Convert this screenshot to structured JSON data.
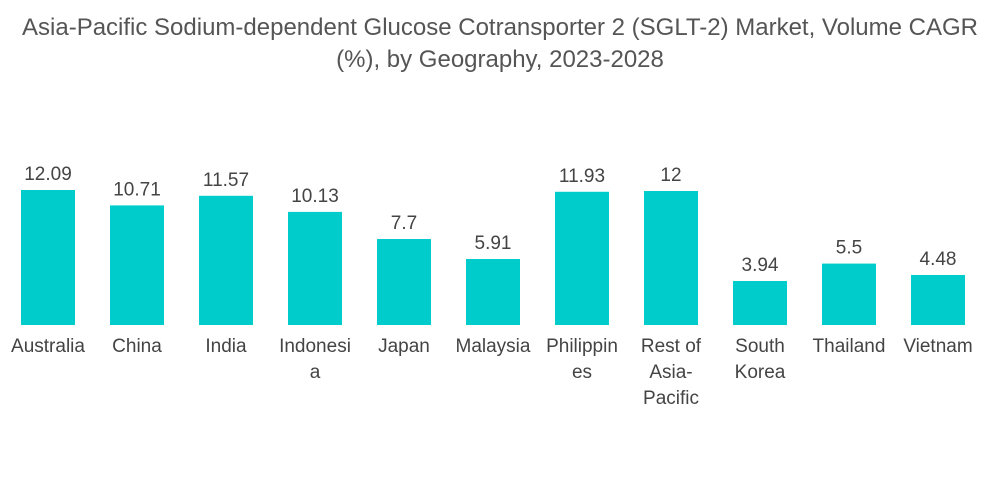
{
  "chart_data": {
    "type": "bar",
    "title_lines": [
      "Asia-Pacific Sodium-dependent Glucose Cotransporter 2 (SGLT-2) Market, Volume CAGR",
      "(%), by Geography, 2023-2028"
    ],
    "categories": [
      "Australia",
      "China",
      "India",
      "Indonesia",
      "Japan",
      "Malaysia",
      "Philippines",
      "Rest of Asia-Pacific",
      "South Korea",
      "Thailand",
      "Vietnam"
    ],
    "category_label_lines": [
      [
        "Australia"
      ],
      [
        "China"
      ],
      [
        "India"
      ],
      [
        "Indonesi",
        "a"
      ],
      [
        "Japan"
      ],
      [
        "Malaysia"
      ],
      [
        "Philippin",
        "es"
      ],
      [
        "Rest of",
        "Asia-",
        "Pacific"
      ],
      [
        "South",
        "Korea"
      ],
      [
        "Thailand"
      ],
      [
        "Vietnam"
      ]
    ],
    "values": [
      12.09,
      10.71,
      11.57,
      10.13,
      7.7,
      5.91,
      11.93,
      12,
      3.94,
      5.5,
      4.48
    ],
    "value_labels": [
      "12.09",
      "10.71",
      "11.57",
      "10.13",
      "7.7",
      "5.91",
      "11.93",
      "12",
      "3.94",
      "5.5",
      "4.48"
    ],
    "xlabel": "",
    "ylabel": "",
    "ylim": [
      0,
      12.09
    ],
    "grid": false,
    "legend": "none",
    "bar_color": "#00CCCC"
  }
}
